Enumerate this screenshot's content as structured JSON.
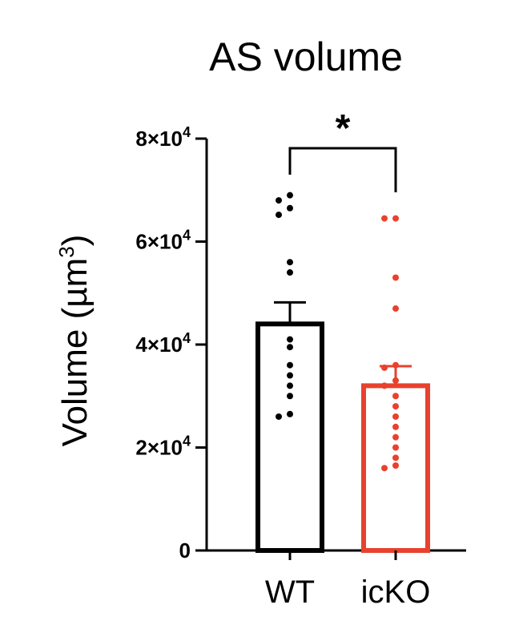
{
  "chart_data": {
    "type": "bar",
    "title": "AS volume",
    "ylabel": "Volume (µm",
    "ylabel_sup": "3",
    "ylabel_close": ")",
    "ylim": [
      0,
      80000
    ],
    "yticks": [
      {
        "value": 0,
        "mantissa": "0",
        "exp": ""
      },
      {
        "value": 20000,
        "mantissa": "2×10",
        "exp": "4"
      },
      {
        "value": 40000,
        "mantissa": "4×10",
        "exp": "4"
      },
      {
        "value": 60000,
        "mantissa": "6×10",
        "exp": "4"
      },
      {
        "value": 80000,
        "mantissa": "8×10",
        "exp": "4"
      }
    ],
    "categories": [
      "WT",
      "icKO"
    ],
    "means": [
      44000,
      32000
    ],
    "sem": [
      4200,
      3800
    ],
    "colors": [
      "#000000",
      "#e8412d"
    ],
    "points": [
      [
        69000,
        68000,
        66500,
        65200,
        56000,
        54000,
        41000,
        39500,
        36000,
        34000,
        32000,
        30000,
        26500,
        26000
      ],
      [
        64500,
        64500,
        53000,
        47000,
        36000,
        35500,
        33000,
        32000,
        30000,
        28000,
        26000,
        24000,
        22000,
        20000,
        18000,
        16500,
        16000
      ]
    ],
    "significance": {
      "label": "*",
      "between": [
        0,
        1
      ]
    },
    "grid": false,
    "legend": "none"
  }
}
